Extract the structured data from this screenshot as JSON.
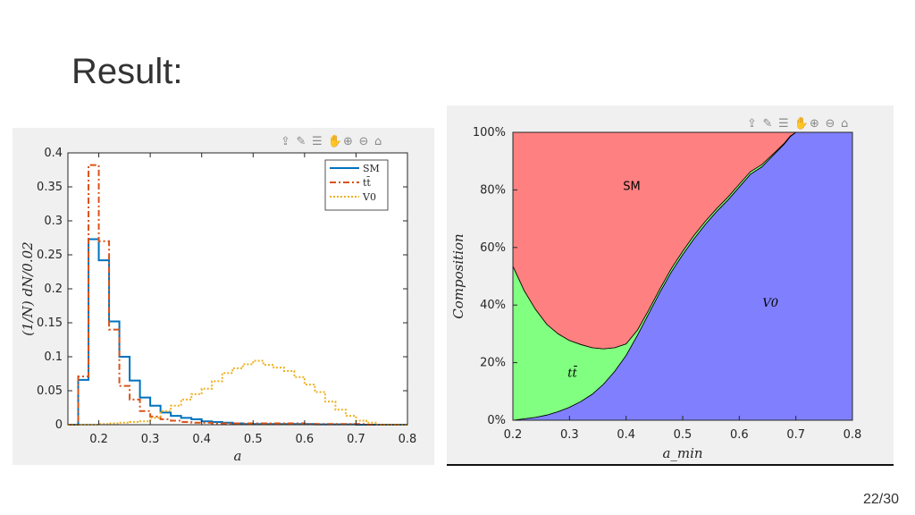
{
  "slide": {
    "title": "Result:",
    "page_number": "22/30"
  },
  "toolbar_icons": [
    "export-icon",
    "brush-icon",
    "legend-icon",
    "pan-icon",
    "zoom-in-icon",
    "zoom-out-icon",
    "home-icon"
  ],
  "chart_data": [
    {
      "type": "line",
      "subtype": "stairs-histogram",
      "title": "",
      "xlabel": "a",
      "ylabel": "(1/N) dN/0.02",
      "xlim": [
        0.14,
        0.8
      ],
      "ylim": [
        0,
        0.4
      ],
      "xticks": [
        "0.2",
        "0.3",
        "0.4",
        "0.5",
        "0.6",
        "0.7",
        "0.8"
      ],
      "yticks": [
        "0",
        "0.05",
        "0.1",
        "0.15",
        "0.2",
        "0.25",
        "0.3",
        "0.35",
        "0.4"
      ],
      "grid": false,
      "legend": "top-right",
      "bin_edges": [
        0.14,
        0.16,
        0.18,
        0.2,
        0.22,
        0.24,
        0.26,
        0.28,
        0.3,
        0.32,
        0.34,
        0.36,
        0.38,
        0.4,
        0.42,
        0.44,
        0.46,
        0.48,
        0.5,
        0.52,
        0.54,
        0.56,
        0.58,
        0.6,
        0.62,
        0.64,
        0.66,
        0.68,
        0.7,
        0.72,
        0.74,
        0.76,
        0.78,
        0.8
      ],
      "series": [
        {
          "name": "SM",
          "color": "#0072bd",
          "dash": "solid",
          "values": [
            0.0,
            0.066,
            0.273,
            0.242,
            0.152,
            0.1,
            0.065,
            0.04,
            0.028,
            0.018,
            0.013,
            0.01,
            0.008,
            0.005,
            0.004,
            0.003,
            0.002,
            0.001,
            0.001,
            0.001,
            0.001,
            0.001,
            0.001,
            0.001,
            0.0005,
            0.0005,
            0.0005,
            0.0005,
            0.0,
            0.0,
            0.0,
            0.0,
            0.0
          ]
        },
        {
          "name": "tt̄",
          "color": "#d95319",
          "dash": "dashdot",
          "values": [
            0.0,
            0.071,
            0.382,
            0.27,
            0.14,
            0.057,
            0.037,
            0.02,
            0.012,
            0.008,
            0.006,
            0.004,
            0.003,
            0.003,
            0.002,
            0.002,
            0.002,
            0.002,
            0.002,
            0.002,
            0.002,
            0.002,
            0.002,
            0.001,
            0.001,
            0.001,
            0.001,
            0.001,
            0.001,
            0.0,
            0.0,
            0.0,
            0.0
          ]
        },
        {
          "name": "V0",
          "color": "#edb120",
          "dash": "dotted",
          "values": [
            0.0,
            0.0,
            0.0,
            0.001,
            0.002,
            0.003,
            0.004,
            0.005,
            0.01,
            0.02,
            0.028,
            0.037,
            0.045,
            0.053,
            0.064,
            0.076,
            0.083,
            0.089,
            0.094,
            0.088,
            0.084,
            0.079,
            0.07,
            0.059,
            0.048,
            0.034,
            0.022,
            0.013,
            0.006,
            0.003,
            0.0,
            0.0,
            0.0
          ]
        }
      ]
    },
    {
      "type": "area",
      "subtype": "stacked-100-percent",
      "title": "",
      "xlabel": "a_min",
      "ylabel": "Composition",
      "xlim": [
        0.2,
        0.8
      ],
      "ylim": [
        0,
        1
      ],
      "xticks": [
        "0.2",
        "0.3",
        "0.4",
        "0.5",
        "0.6",
        "0.7",
        "0.8"
      ],
      "yticks": [
        "0%",
        "20%",
        "40%",
        "60%",
        "80%",
        "100%"
      ],
      "grid": false,
      "region_labels": {
        "sm": "SM",
        "tt": "tt̄",
        "v0": "V0"
      },
      "x": [
        0.2,
        0.22,
        0.24,
        0.26,
        0.28,
        0.3,
        0.32,
        0.34,
        0.36,
        0.38,
        0.4,
        0.42,
        0.44,
        0.46,
        0.48,
        0.5,
        0.52,
        0.54,
        0.56,
        0.58,
        0.6,
        0.62,
        0.64,
        0.66,
        0.68,
        0.69,
        0.7,
        0.72,
        0.74,
        0.76,
        0.78,
        0.8
      ],
      "series": [
        {
          "name": "V0",
          "color": "#8080ff",
          "values": [
            0.0,
            0.005,
            0.01,
            0.018,
            0.03,
            0.045,
            0.065,
            0.09,
            0.125,
            0.17,
            0.225,
            0.295,
            0.37,
            0.445,
            0.515,
            0.575,
            0.63,
            0.68,
            0.725,
            0.765,
            0.81,
            0.855,
            0.88,
            0.92,
            0.96,
            0.985,
            1.0,
            1.0,
            1.0,
            1.0,
            1.0,
            1.0
          ]
        },
        {
          "name": "tt̄",
          "color": "#80ff80",
          "values": [
            0.535,
            0.445,
            0.375,
            0.315,
            0.27,
            0.232,
            0.198,
            0.162,
            0.123,
            0.082,
            0.04,
            0.018,
            0.013,
            0.012,
            0.012,
            0.012,
            0.012,
            0.011,
            0.01,
            0.01,
            0.01,
            0.009,
            0.008,
            0.005,
            0.003,
            0.002,
            0.0,
            0.0,
            0.0,
            0.0,
            0.0,
            0.0
          ]
        },
        {
          "name": "SM",
          "color": "#ff8080",
          "values": [
            0.465,
            0.55,
            0.615,
            0.667,
            0.7,
            0.723,
            0.737,
            0.748,
            0.752,
            0.748,
            0.735,
            0.687,
            0.617,
            0.543,
            0.473,
            0.413,
            0.358,
            0.309,
            0.265,
            0.225,
            0.18,
            0.136,
            0.112,
            0.075,
            0.037,
            0.013,
            0.0,
            0.0,
            0.0,
            0.0,
            0.0,
            0.0
          ]
        }
      ]
    }
  ]
}
